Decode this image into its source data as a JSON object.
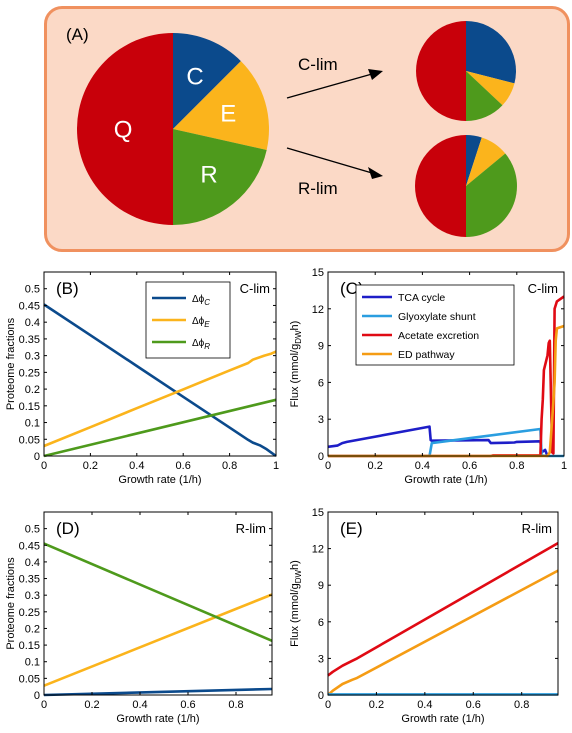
{
  "panel_a": {
    "label": "(A)",
    "main_pie": {
      "slices": [
        {
          "name": "Q",
          "fraction": 0.5,
          "color": "#c8000a"
        },
        {
          "name": "C",
          "fraction": 0.125,
          "color": "#0b4a8c"
        },
        {
          "name": "E",
          "fraction": 0.16,
          "color": "#fbb41c"
        },
        {
          "name": "R",
          "fraction": 0.215,
          "color": "#4e9a1c"
        }
      ]
    },
    "clim_label": "C-lim",
    "rlim_label": "R-lim",
    "clim_pie": {
      "slices": [
        {
          "name": "Q",
          "fraction": 0.5,
          "color": "#c8000a"
        },
        {
          "name": "C",
          "fraction": 0.29,
          "color": "#0b4a8c"
        },
        {
          "name": "E",
          "fraction": 0.08,
          "color": "#fbb41c"
        },
        {
          "name": "R",
          "fraction": 0.13,
          "color": "#4e9a1c"
        }
      ]
    },
    "rlim_pie": {
      "slices": [
        {
          "name": "Q",
          "fraction": 0.5,
          "color": "#c8000a"
        },
        {
          "name": "C",
          "fraction": 0.05,
          "color": "#0b4a8c"
        },
        {
          "name": "E",
          "fraction": 0.09,
          "color": "#fbb41c"
        },
        {
          "name": "R",
          "fraction": 0.36,
          "color": "#4e9a1c"
        }
      ]
    }
  },
  "chart_data": [
    {
      "id": "B",
      "type": "line",
      "panel_label": "(B)",
      "corner_label": "C-lim",
      "xlabel": "Growth rate (1/h)",
      "ylabel": "Proteome fractions",
      "xlim": [
        0,
        1
      ],
      "ylim": [
        0,
        0.55
      ],
      "xticks": [
        0,
        0.2,
        0.4,
        0.6,
        0.8,
        1
      ],
      "xtick_labels": [
        "0",
        "0.2",
        "0.4",
        "0.6",
        "0.8",
        "1"
      ],
      "yticks": [
        0,
        0.05,
        0.1,
        0.15,
        0.2,
        0.25,
        0.3,
        0.35,
        0.4,
        0.45,
        0.5
      ],
      "ytick_labels": [
        "0",
        "0.05",
        "0.1",
        "0.15",
        "0.2",
        "0.25",
        "0.3",
        "0.35",
        "0.4",
        "0.45",
        "0.5"
      ],
      "legend": "top-right",
      "series": [
        {
          "name": "Δϕ",
          "sub": "C",
          "color": "#0b4a8c",
          "x": [
            0,
            0.2,
            0.4,
            0.6,
            0.8,
            0.88,
            0.9,
            0.93,
            0.96,
            0.98,
            1.0
          ],
          "y": [
            0.453,
            0.361,
            0.269,
            0.177,
            0.085,
            0.048,
            0.04,
            0.032,
            0.02,
            0.01,
            0.0
          ]
        },
        {
          "name": "Δϕ",
          "sub": "E",
          "color": "#fbb41c",
          "x": [
            0,
            0.2,
            0.4,
            0.6,
            0.8,
            0.88,
            0.9,
            0.95,
            0.98,
            1.0
          ],
          "y": [
            0.03,
            0.086,
            0.143,
            0.199,
            0.256,
            0.278,
            0.288,
            0.3,
            0.306,
            0.312
          ]
        },
        {
          "name": "Δϕ",
          "sub": "R",
          "color": "#4e9a1c",
          "x": [
            0,
            1.0
          ],
          "y": [
            0.0,
            0.168
          ]
        }
      ]
    },
    {
      "id": "C",
      "type": "line",
      "panel_label": "(C)",
      "corner_label": "C-lim",
      "xlabel": "Growth rate (1/h)",
      "ylabel": "Flux (mmol/g",
      "ylabel_sub": "DW",
      "ylabel_tail": "h)",
      "xlim": [
        0,
        1
      ],
      "ylim": [
        0,
        15
      ],
      "xticks": [
        0,
        0.2,
        0.4,
        0.6,
        0.8,
        1
      ],
      "xtick_labels": [
        "0",
        "0.2",
        "0.4",
        "0.6",
        "0.8",
        "1"
      ],
      "yticks": [
        0,
        3,
        6,
        9,
        12,
        15
      ],
      "ytick_labels": [
        "0",
        "3",
        "6",
        "9",
        "12",
        "15"
      ],
      "legend": "top-left",
      "series": [
        {
          "name": "TCA cycle",
          "color": "#1e1ec8",
          "x": [
            0,
            0.04,
            0.06,
            0.08,
            0.43,
            0.435,
            0.44,
            0.68,
            0.69,
            0.79,
            0.8,
            0.9,
            0.905,
            0.92,
            0.93
          ],
          "y": [
            0.75,
            0.85,
            1.05,
            1.15,
            2.4,
            1.3,
            1.25,
            1.3,
            1.05,
            1.1,
            1.15,
            1.2,
            0.3,
            0.5,
            0.0
          ]
        },
        {
          "name": "Glyoxylate shunt",
          "color": "#2a9ee0",
          "x": [
            0,
            0.43,
            0.44,
            0.9,
            0.905,
            0.93,
            1.0
          ],
          "y": [
            0,
            0,
            1.05,
            2.2,
            0.05,
            0,
            0
          ]
        },
        {
          "name": "Acetate excretion",
          "color": "#e00a14",
          "x": [
            0,
            0.69,
            0.7,
            0.8,
            0.9,
            0.905,
            0.91,
            0.915,
            0.93,
            0.935,
            0.94,
            0.95,
            0.955,
            0.96,
            0.97,
            1.0
          ],
          "y": [
            0,
            0,
            0.05,
            0.05,
            0.05,
            3.0,
            4.6,
            7.0,
            8.2,
            9.2,
            9.4,
            0.3,
            0.2,
            12.0,
            12.6,
            13.0
          ]
        },
        {
          "name": "ED pathway",
          "color": "#f59c14",
          "x": [
            0,
            0.93,
            0.94,
            0.95,
            0.96,
            0.965,
            0.97,
            1.0
          ],
          "y": [
            0,
            0,
            0.3,
            3.0,
            6.0,
            9.4,
            10.4,
            10.6
          ]
        }
      ]
    },
    {
      "id": "D",
      "type": "line",
      "panel_label": "(D)",
      "corner_label": "R-lim",
      "xlabel": "Growth rate (1/h)",
      "ylabel": "Proteome fractions",
      "xlim": [
        0,
        0.95
      ],
      "ylim": [
        0,
        0.55
      ],
      "xticks": [
        0,
        0.2,
        0.4,
        0.6,
        0.8
      ],
      "xtick_labels": [
        "0",
        "0.2",
        "0.4",
        "0.6",
        "0.8"
      ],
      "yticks": [
        0,
        0.05,
        0.1,
        0.15,
        0.2,
        0.25,
        0.3,
        0.35,
        0.4,
        0.45,
        0.5
      ],
      "ytick_labels": [
        "0",
        "0.05",
        "0.1",
        "0.15",
        "0.2",
        "0.25",
        "0.3",
        "0.35",
        "0.4",
        "0.45",
        "0.5"
      ],
      "series": [
        {
          "color": "#0b4a8c",
          "x": [
            0,
            0.95
          ],
          "y": [
            0.0,
            0.018
          ]
        },
        {
          "color": "#fbb41c",
          "x": [
            0,
            0.95
          ],
          "y": [
            0.028,
            0.302
          ]
        },
        {
          "color": "#4e9a1c",
          "x": [
            0,
            0.95
          ],
          "y": [
            0.455,
            0.163
          ]
        }
      ]
    },
    {
      "id": "E",
      "type": "line",
      "panel_label": "(E)",
      "corner_label": "R-lim",
      "xlabel": "Growth rate (1/h)",
      "ylabel": "Flux (mmol/g",
      "ylabel_sub": "DW",
      "ylabel_tail": "h)",
      "xlim": [
        0,
        0.95
      ],
      "ylim": [
        0,
        15
      ],
      "xticks": [
        0,
        0.2,
        0.4,
        0.6,
        0.8
      ],
      "xtick_labels": [
        "0",
        "0.2",
        "0.4",
        "0.6",
        "0.8"
      ],
      "yticks": [
        0,
        3,
        6,
        9,
        12,
        15
      ],
      "ytick_labels": [
        "0",
        "3",
        "6",
        "9",
        "12",
        "15"
      ],
      "series": [
        {
          "color": "#e00a14",
          "x": [
            0,
            0.02,
            0.06,
            0.1,
            0.12,
            0.95
          ],
          "y": [
            1.6,
            1.9,
            2.4,
            2.8,
            3.0,
            12.45
          ]
        },
        {
          "color": "#f59c14",
          "x": [
            0,
            0.02,
            0.06,
            0.1,
            0.12,
            0.95
          ],
          "y": [
            0.0,
            0.35,
            0.9,
            1.25,
            1.4,
            10.2
          ]
        },
        {
          "color": "#2a9ee0",
          "x": [
            0,
            0.95
          ],
          "y": [
            0.05,
            0.05
          ]
        }
      ]
    }
  ]
}
